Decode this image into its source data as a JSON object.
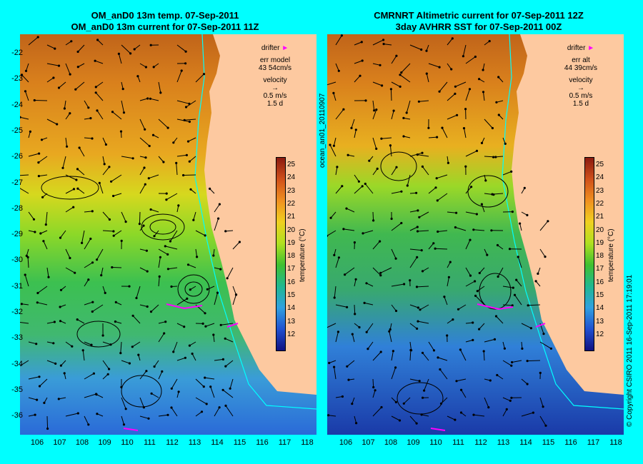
{
  "left_panel": {
    "title_line1": "OM_anD0 13m temp. 07-Sep-2011",
    "title_line2": "OM_anD0 13m current for 07-Sep-2011 11Z",
    "legend": {
      "drifter": "drifter",
      "err_label": "err model",
      "err_value": "43 54cm/s",
      "velocity": "velocity",
      "scale": "0.5 m/s",
      "days": "1.5 d"
    }
  },
  "right_panel": {
    "title_line1": "CMRNRT Altimetric current for 07-Sep-2011 12Z",
    "title_line2": "3day AVHRR SST for 07-Sep-2011 00Z",
    "legend": {
      "drifter": "drifter",
      "err_label": "err alt",
      "err_value": "44 39cm/s",
      "velocity": "velocity",
      "scale": "0.5 m/s",
      "days": "1.5 d"
    }
  },
  "side_label": "ocean_an01_20110907",
  "copyright": "© Copyright CSIRO 2011   16-Sep-2011 17:19:01",
  "colorbar": {
    "label": "temperature (°C)",
    "ticks": [
      "25",
      "24",
      "23",
      "22",
      "21",
      "20",
      "19",
      "18",
      "17",
      "16",
      "15",
      "14",
      "13",
      "12"
    ]
  },
  "y_ticks": [
    "-22",
    "-23",
    "-24",
    "-25",
    "-26",
    "-27",
    "-28",
    "-29",
    "-30",
    "-31",
    "-32",
    "-33",
    "-34",
    "-35",
    "-36"
  ],
  "x_ticks": [
    "106",
    "107",
    "108",
    "109",
    "110",
    "111",
    "112",
    "113",
    "114",
    "115",
    "116",
    "117",
    "118"
  ],
  "colors": {
    "background": "#00ffff",
    "land": "#fdc9a0",
    "arrow": "#000000",
    "drifter": "#ff00ff"
  }
}
